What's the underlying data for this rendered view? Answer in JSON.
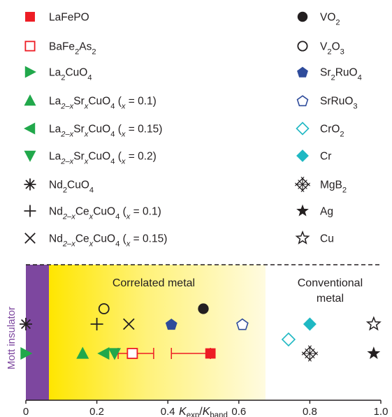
{
  "chart_data": {
    "type": "scatter",
    "xlabel": "K_exp/K_band",
    "xlim": [
      0,
      1.0
    ],
    "x_ticks": [
      "0",
      "0.2",
      "0.4",
      "0.6",
      "0.8",
      "1.0"
    ],
    "regions": [
      {
        "label": "Mott insulator",
        "x_range": [
          0,
          0.065
        ],
        "color": "#7d479f"
      },
      {
        "label": "Correlated metal",
        "x_range": [
          0.065,
          0.675
        ],
        "color": "#ffe600"
      },
      {
        "label_lines": [
          "Conventional",
          "metal"
        ],
        "x_range": [
          0.675,
          1.0
        ],
        "color": "#ffffff"
      }
    ],
    "series": [
      {
        "name": "LaFePO",
        "legend": [
          "LaFePO"
        ],
        "marker": "square-filled",
        "color": "#ed1c24",
        "x": 0.52,
        "row": "lower",
        "xerr": [
          0.41,
          0.52
        ]
      },
      {
        "name": "BaFe2As2",
        "legend": [
          "BaFe",
          "2",
          "As",
          "2"
        ],
        "marker": "square-open",
        "color": "#ed1c24",
        "x": 0.3,
        "row": "lower",
        "xerr": [
          0.26,
          0.36
        ]
      },
      {
        "name": "La2CuO4",
        "legend": [
          "La",
          "2",
          "CuO",
          "4"
        ],
        "marker": "tri-right",
        "color": "#21a84b",
        "x": 0.0,
        "row": "lower"
      },
      {
        "name": "La2-xSrxCuO4 (x = 0.1)",
        "legend": [
          "La",
          "2–x",
          "Sr",
          "x",
          "CuO",
          "4",
          " (",
          "x",
          " = 0.1)"
        ],
        "marker": "tri-up",
        "color": "#21a84b",
        "x": 0.16,
        "row": "lower"
      },
      {
        "name": "La2-xSrxCuO4 (x = 0.15)",
        "legend": [
          "La",
          "2–x",
          "Sr",
          "x",
          "CuO",
          "4",
          " (",
          "x",
          " = 0.15)"
        ],
        "marker": "tri-left",
        "color": "#21a84b",
        "x": 0.22,
        "row": "lower"
      },
      {
        "name": "La2-xSrxCuO4 (x = 0.2)",
        "legend": [
          "La",
          "2–x",
          "Sr",
          "x",
          "CuO",
          "4",
          " (",
          "x",
          " = 0.2)"
        ],
        "marker": "tri-down",
        "color": "#21a84b",
        "x": 0.25,
        "row": "lower"
      },
      {
        "name": "Nd2CuO4",
        "legend": [
          "Nd",
          "2",
          "CuO",
          "4"
        ],
        "marker": "asterisk",
        "color": "#231f20",
        "x": 0.0,
        "row": "upper"
      },
      {
        "name": "Nd2-xCexCuO4 (x = 0.1)",
        "legend": [
          "Nd",
          "2–x",
          "Ce",
          "x",
          "CuO",
          "4",
          " (",
          "x",
          " = 0.1)"
        ],
        "marker": "plus",
        "color": "#231f20",
        "x": 0.2,
        "row": "upper"
      },
      {
        "name": "Nd2-xCexCuO4 (x = 0.15)",
        "legend": [
          "Nd",
          "2–x",
          "Ce",
          "x",
          "CuO",
          "4",
          " (",
          "x",
          " = 0.15)"
        ],
        "marker": "cross",
        "color": "#231f20",
        "x": 0.29,
        "row": "upper"
      },
      {
        "name": "VO2",
        "legend": [
          "VO",
          "2"
        ],
        "marker": "circle-filled",
        "color": "#231f20",
        "x": 0.5,
        "row": "top"
      },
      {
        "name": "V2O3",
        "legend": [
          "V",
          "2",
          "O",
          "3"
        ],
        "marker": "circle-open",
        "color": "#231f20",
        "x": 0.22,
        "row": "top"
      },
      {
        "name": "Sr2RuO4",
        "legend": [
          "Sr",
          "2",
          "RuO",
          "4"
        ],
        "marker": "pentagon-filled",
        "color": "#2e4b9b",
        "x": 0.41,
        "row": "upper"
      },
      {
        "name": "SrRuO3",
        "legend": [
          "SrRuO",
          "3"
        ],
        "marker": "pentagon-open",
        "color": "#2e4b9b",
        "x": 0.61,
        "row": "upper"
      },
      {
        "name": "CrO2",
        "legend": [
          "CrO",
          "2"
        ],
        "marker": "diamond-open",
        "color": "#1fb8c3",
        "x": 0.74,
        "row": "mid"
      },
      {
        "name": "Cr",
        "legend": [
          "Cr"
        ],
        "marker": "diamond-filled",
        "color": "#1fb8c3",
        "x": 0.8,
        "row": "upper"
      },
      {
        "name": "MgB2",
        "legend": [
          "MgB",
          "2"
        ],
        "marker": "crosshatch",
        "color": "#231f20",
        "x": 0.8,
        "row": "lower"
      },
      {
        "name": "Ag",
        "legend": [
          "Ag"
        ],
        "marker": "star-filled",
        "color": "#231f20",
        "x": 0.98,
        "row": "lower"
      },
      {
        "name": "Cu",
        "legend": [
          "Cu"
        ],
        "marker": "star-open",
        "color": "#231f20",
        "x": 0.98,
        "row": "upper"
      }
    ]
  }
}
